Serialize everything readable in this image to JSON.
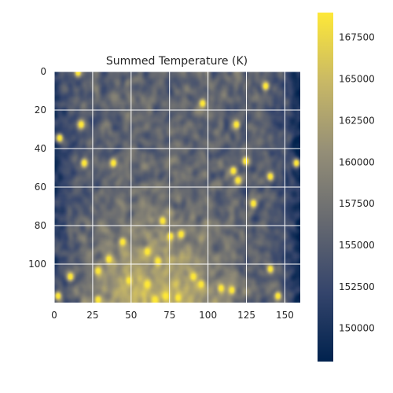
{
  "chart_data": {
    "type": "heatmap",
    "title": "Summed Temperature (K)",
    "xlabel": "",
    "ylabel": "",
    "xlim": [
      0,
      160
    ],
    "ylim": [
      120,
      0
    ],
    "grid": true,
    "x_ticks": [
      0,
      25,
      50,
      75,
      100,
      125,
      150
    ],
    "y_ticks": [
      0,
      20,
      40,
      60,
      80,
      100
    ],
    "colormap": "cividis",
    "colormap_stops": [
      "#00224e",
      "#35456c",
      "#666970",
      "#948e77",
      "#c8b866",
      "#fee838"
    ],
    "colorbar": {
      "range": [
        148000,
        169000
      ],
      "ticks": [
        150000,
        152500,
        155000,
        157500,
        160000,
        162500,
        165000,
        167500
      ]
    },
    "field_description": {
      "base_value": 156000,
      "left_edge_value": 151000,
      "right_edge_value": 150000,
      "bottom_center_value": 165000,
      "hotspot_value": 169000,
      "hotspots": [
        {
          "x": 118,
          "y": 27
        },
        {
          "x": 96,
          "y": 16
        },
        {
          "x": 137,
          "y": 7
        },
        {
          "x": 19,
          "y": 47
        },
        {
          "x": 38,
          "y": 47
        },
        {
          "x": 116,
          "y": 51
        },
        {
          "x": 119,
          "y": 56
        },
        {
          "x": 124,
          "y": 46
        },
        {
          "x": 140,
          "y": 54
        },
        {
          "x": 157,
          "y": 47
        },
        {
          "x": 129,
          "y": 68
        },
        {
          "x": 3,
          "y": 34
        },
        {
          "x": 17,
          "y": 27
        },
        {
          "x": 15,
          "y": 0
        },
        {
          "x": 82,
          "y": 84
        },
        {
          "x": 75,
          "y": 85
        },
        {
          "x": 70,
          "y": 77
        },
        {
          "x": 60,
          "y": 93
        },
        {
          "x": 67,
          "y": 98
        },
        {
          "x": 28,
          "y": 103
        },
        {
          "x": 35,
          "y": 97
        },
        {
          "x": 10,
          "y": 106
        },
        {
          "x": 48,
          "y": 108
        },
        {
          "x": 60,
          "y": 110
        },
        {
          "x": 72,
          "y": 116
        },
        {
          "x": 65,
          "y": 118
        },
        {
          "x": 80,
          "y": 117
        },
        {
          "x": 90,
          "y": 106
        },
        {
          "x": 95,
          "y": 110
        },
        {
          "x": 108,
          "y": 112
        },
        {
          "x": 115,
          "y": 113
        },
        {
          "x": 28,
          "y": 118
        },
        {
          "x": 2,
          "y": 116
        },
        {
          "x": 140,
          "y": 102
        },
        {
          "x": 145,
          "y": 116
        },
        {
          "x": 44,
          "y": 88
        }
      ]
    }
  }
}
